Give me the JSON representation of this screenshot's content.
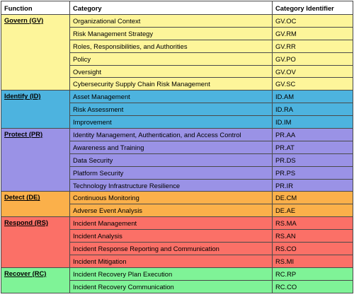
{
  "headers": {
    "function": "Function",
    "category": "Category",
    "identifier": "Category Identifier"
  },
  "groups": [
    {
      "function": "Govern (GV)",
      "color": "#fdf59a",
      "rows": [
        {
          "category": "Organizational Context",
          "id": "GV.OC"
        },
        {
          "category": "Risk Management Strategy",
          "id": "GV.RM"
        },
        {
          "category": "Roles, Responsibilities, and Authorities",
          "id": "GV.RR"
        },
        {
          "category": "Policy",
          "id": "GV.PO"
        },
        {
          "category": "Oversight",
          "id": "GV.OV"
        },
        {
          "category": "Cybersecurity Supply Chain Risk Management",
          "id": "GV.SC"
        }
      ]
    },
    {
      "function": "Identify (ID)",
      "color": "#4db3df",
      "rows": [
        {
          "category": "Asset Management",
          "id": "ID.AM"
        },
        {
          "category": "Risk Assessment",
          "id": "ID.RA"
        },
        {
          "category": "Improvement",
          "id": "ID.IM"
        }
      ]
    },
    {
      "function": "Protect (PR)",
      "color": "#9a92e6",
      "rows": [
        {
          "category": "Identity Management, Authentication, and Access Control",
          "id": "PR.AA"
        },
        {
          "category": "Awareness and Training",
          "id": "PR.AT"
        },
        {
          "category": "Data Security",
          "id": "PR.DS"
        },
        {
          "category": "Platform Security",
          "id": "PR.PS"
        },
        {
          "category": "Technology Infrastructure Resilience",
          "id": "PR.IR"
        }
      ]
    },
    {
      "function": "Detect (DE)",
      "color": "#fbb04a",
      "rows": [
        {
          "category": "Continuous Monitoring",
          "id": "DE.CM"
        },
        {
          "category": "Adverse Event Analysis",
          "id": "DE.AE"
        }
      ]
    },
    {
      "function": "Respond (RS)",
      "color": "#fb7067",
      "rows": [
        {
          "category": "Incident Management",
          "id": "RS.MA"
        },
        {
          "category": "Incident Analysis",
          "id": "RS.AN"
        },
        {
          "category": "Incident Response Reporting and Communication",
          "id": "RS.CO"
        },
        {
          "category": "Incident Mitigation",
          "id": "RS.MI"
        }
      ]
    },
    {
      "function": "Recover (RC)",
      "color": "#7ff397",
      "rows": [
        {
          "category": "Incident Recovery Plan Execution",
          "id": "RC.RP"
        },
        {
          "category": "Incident Recovery Communication",
          "id": "RC.CO"
        }
      ]
    }
  ]
}
